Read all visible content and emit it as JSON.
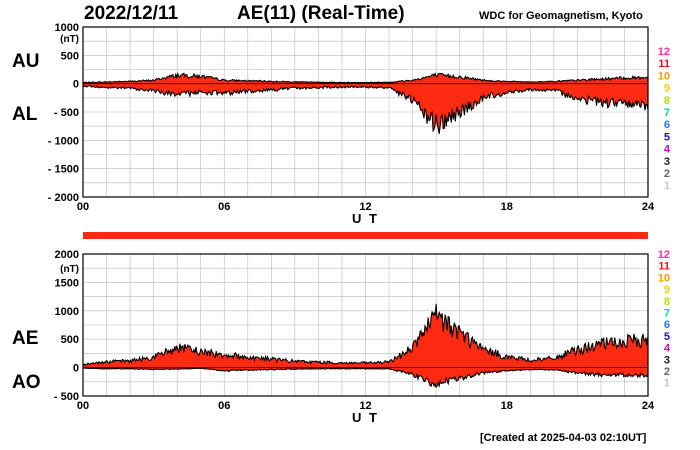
{
  "header": {
    "date": "2022/12/11",
    "title": "AE(11) (Real-Time)",
    "source": "WDC for Geomagnetism, Kyoto"
  },
  "footer": {
    "created": "[Created at 2025-04-03 02:10UT]"
  },
  "colors": {
    "fill": "#ff2a12",
    "outline": "#000000",
    "grid": "#bbbbbb",
    "bar": "#ff2a12"
  },
  "station_legend": {
    "labels": [
      "12",
      "11",
      "10",
      "9",
      "8",
      "7",
      "6",
      "5",
      "4",
      "3",
      "2",
      "1"
    ],
    "colors": [
      "#ff2d9b",
      "#e8141e",
      "#ff9a00",
      "#f2d200",
      "#b6e000",
      "#00d2b4",
      "#1e78ff",
      "#1414c8",
      "#d200d2",
      "#222222",
      "#666666",
      "#c8c8c8"
    ]
  },
  "chart_data": [
    {
      "type": "area",
      "panel": "AU / AL",
      "series_labels": [
        "AU",
        "AL"
      ],
      "xlabel": "U T",
      "ylabel": "(nT)",
      "xlim": [
        0,
        24
      ],
      "ylim": [
        -2000,
        1000
      ],
      "x_ticks": [
        "00",
        "06",
        "12",
        "18",
        "24"
      ],
      "y_ticks": [
        "1000",
        "500",
        "0",
        "- 500",
        "- 1000",
        "- 1500",
        "- 2000"
      ],
      "y_tick_values": [
        1000,
        500,
        0,
        -500,
        -1000,
        -1500,
        -2000
      ],
      "grid": true,
      "hours": [
        0,
        1,
        2,
        3,
        4,
        5,
        6,
        7,
        8,
        9,
        10,
        11,
        12,
        13,
        14,
        15,
        16,
        17,
        18,
        19,
        20,
        21,
        22,
        23,
        24
      ],
      "AU": [
        20,
        30,
        40,
        60,
        150,
        130,
        60,
        50,
        40,
        30,
        25,
        20,
        20,
        25,
        60,
        150,
        120,
        60,
        40,
        30,
        40,
        60,
        80,
        100,
        110
      ],
      "AL": [
        -40,
        -70,
        -80,
        -120,
        -200,
        -150,
        -170,
        -130,
        -110,
        -80,
        -70,
        -60,
        -60,
        -70,
        -300,
        -750,
        -500,
        -250,
        -150,
        -100,
        -120,
        -250,
        -330,
        -350,
        -380
      ]
    },
    {
      "type": "area",
      "panel": "AE / AO",
      "series_labels": [
        "AE",
        "AO"
      ],
      "xlabel": "U T",
      "ylabel": "(nT)",
      "xlim": [
        0,
        24
      ],
      "ylim": [
        -500,
        2000
      ],
      "x_ticks": [
        "00",
        "06",
        "12",
        "18",
        "24"
      ],
      "y_ticks": [
        "2000",
        "1500",
        "1000",
        "500",
        "0",
        "- 500"
      ],
      "y_tick_values": [
        2000,
        1500,
        1000,
        500,
        0,
        -500
      ],
      "grid": true,
      "hours": [
        0,
        1,
        2,
        3,
        4,
        5,
        6,
        7,
        8,
        9,
        10,
        11,
        12,
        13,
        14,
        15,
        16,
        17,
        18,
        19,
        20,
        21,
        22,
        23,
        24
      ],
      "AE": [
        60,
        100,
        120,
        180,
        350,
        280,
        230,
        180,
        150,
        110,
        95,
        80,
        80,
        95,
        360,
        900,
        620,
        310,
        190,
        130,
        160,
        310,
        410,
        450,
        490
      ],
      "AO": [
        -10,
        -20,
        -20,
        -30,
        -25,
        -10,
        -55,
        -40,
        -35,
        -25,
        -22,
        -20,
        -20,
        -22,
        -120,
        -300,
        -190,
        -95,
        -55,
        -35,
        -40,
        -95,
        -125,
        -125,
        -135
      ]
    }
  ]
}
